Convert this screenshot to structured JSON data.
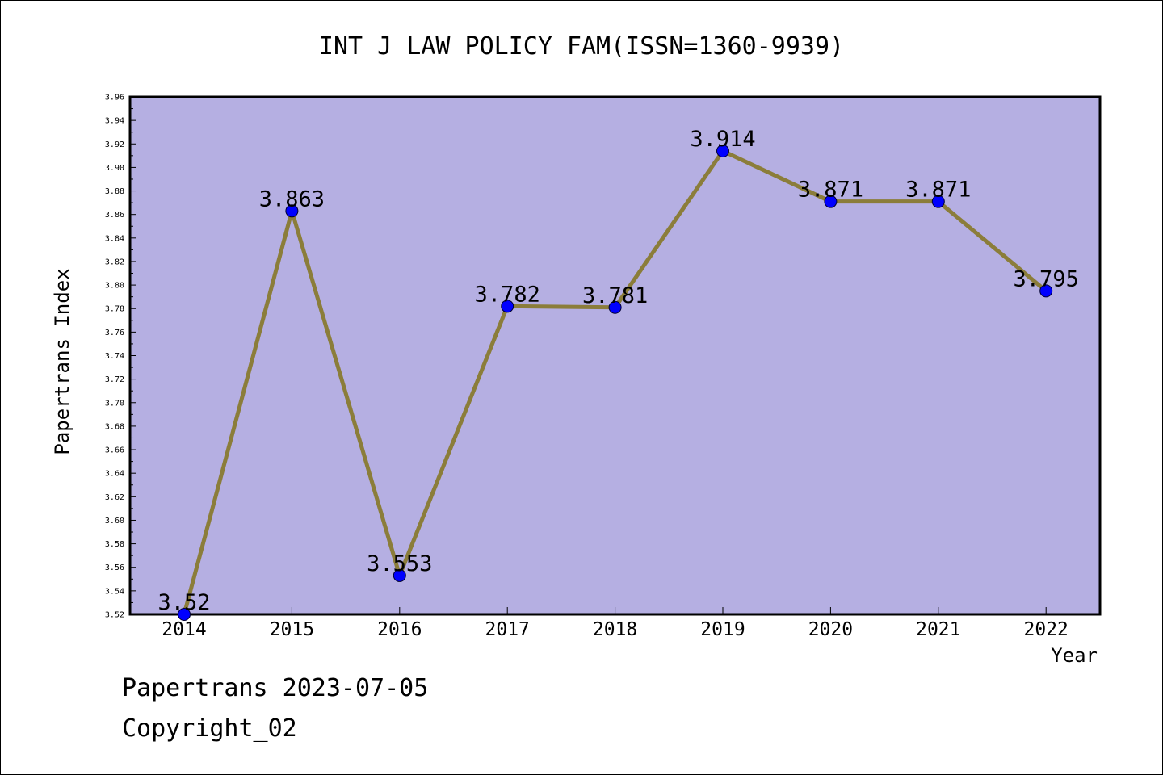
{
  "chart_data": {
    "type": "line",
    "title": "INT J LAW POLICY FAM(ISSN=1360-9939)",
    "xlabel": "Year",
    "ylabel": "Papertrans Index",
    "categories": [
      "2014",
      "2015",
      "2016",
      "2017",
      "2018",
      "2019",
      "2020",
      "2021",
      "2022"
    ],
    "values": [
      3.52,
      3.863,
      3.553,
      3.782,
      3.781,
      3.914,
      3.871,
      3.871,
      3.795
    ],
    "data_labels": [
      "3.52",
      "3.863",
      "3.553",
      "3.782",
      "3.781",
      "3.914",
      "3.871",
      "3.871",
      "3.795"
    ],
    "ylim": [
      3.52,
      3.96
    ],
    "y_ticks": [
      "3.52",
      "3.54",
      "3.56",
      "3.58",
      "3.60",
      "3.62",
      "3.64",
      "3.66",
      "3.68",
      "3.70",
      "3.72",
      "3.74",
      "3.76",
      "3.78",
      "3.80",
      "3.82",
      "3.84",
      "3.86",
      "3.88",
      "3.90",
      "3.92",
      "3.94",
      "3.96"
    ],
    "grid": false,
    "legend": "none",
    "colors": {
      "plot_background": "#b5afe2",
      "line": "#8b7d3a",
      "marker": "#0000ff"
    }
  },
  "footer": {
    "date_line": "Papertrans 2023-07-05",
    "copyright": "Copyright_02"
  }
}
